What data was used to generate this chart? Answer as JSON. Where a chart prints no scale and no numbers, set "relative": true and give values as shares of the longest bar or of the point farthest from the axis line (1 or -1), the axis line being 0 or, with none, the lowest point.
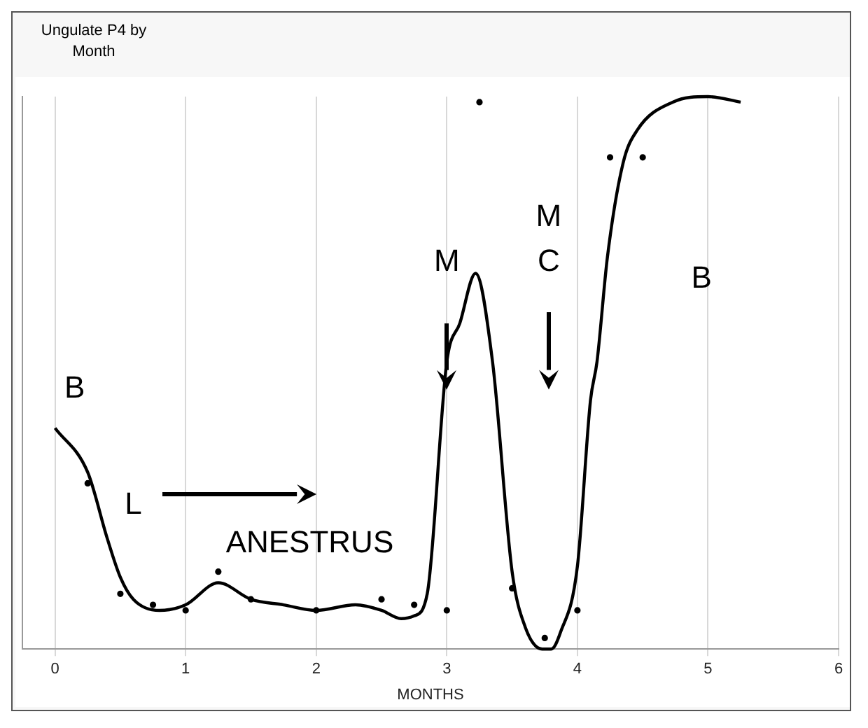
{
  "chart_data": {
    "type": "line",
    "title": "Ungulate P4 by Month",
    "xlabel": "MONTHS",
    "relative": true,
    "xlim": [
      -0.25,
      6
    ],
    "xticks": [
      0,
      1,
      2,
      3,
      4,
      5,
      6
    ],
    "grid": "x",
    "legend": false,
    "annotations": [
      "B",
      "L",
      "ANESTRUS",
      "M",
      "M C",
      "B"
    ],
    "series": [
      {
        "type": "line",
        "color": "#000000",
        "marker": "none",
        "x": [
          0,
          0.25,
          0.4,
          0.5,
          0.6,
          0.8,
          1,
          1.25,
          1.5,
          1.75,
          2,
          2.3,
          2.5,
          2.65,
          2.75,
          2.85,
          3,
          3.1,
          3.22,
          3.35,
          3.5,
          3.6,
          3.73,
          3.8,
          3.87,
          4,
          4.1,
          4.15,
          4.23,
          4.35,
          4.46,
          4.73,
          5,
          5.25
        ],
        "values": [
          0.4,
          0.32,
          0.2,
          0.13,
          0.09,
          0.07,
          0.08,
          0.12,
          0.09,
          0.08,
          0.07,
          0.08,
          0.07,
          0.055,
          0.06,
          0.1,
          0.52,
          0.59,
          0.68,
          0.52,
          0.14,
          0.04,
          0,
          0,
          0.03,
          0.15,
          0.45,
          0.52,
          0.71,
          0.88,
          0.94,
          0.99,
          1,
          0.99
        ]
      },
      {
        "type": "scatter",
        "color": "#000000",
        "marker": "circle",
        "x": [
          0.25,
          0.5,
          0.75,
          1,
          1.25,
          1.5,
          2,
          2.5,
          2.75,
          3,
          3.25,
          3.5,
          3.75,
          4,
          4.25,
          4.5
        ],
        "values": [
          0.3,
          0.1,
          0.08,
          0.07,
          0.14,
          0.09,
          0.07,
          0.09,
          0.08,
          0.07,
          0.99,
          0.11,
          0.02,
          0.07,
          0.89,
          0.89
        ]
      }
    ]
  }
}
